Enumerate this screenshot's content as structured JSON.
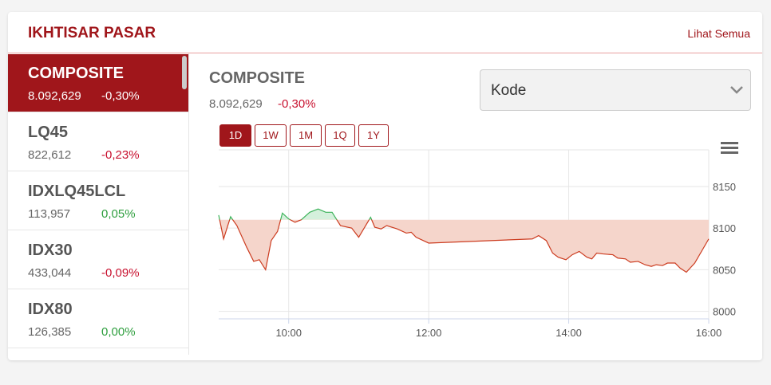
{
  "header": {
    "title": "IKHTISAR PASAR",
    "link": "Lihat Semua"
  },
  "list": [
    {
      "name": "COMPOSITE",
      "value": "8.092,629",
      "change": "-0,30%",
      "color": "#c8102e",
      "selected": true
    },
    {
      "name": "LQ45",
      "value": "822,612",
      "change": "-0,23%",
      "color": "#c8102e"
    },
    {
      "name": "IDXLQ45LCL",
      "value": "113,957",
      "change": "0,05%",
      "color": "#2e9e3e"
    },
    {
      "name": "IDX30",
      "value": "433,044",
      "change": "-0,09%",
      "color": "#c8102e"
    },
    {
      "name": "IDX80",
      "value": "126,385",
      "change": "0,00%",
      "color": "#2e9e3e"
    }
  ],
  "detail": {
    "name": "COMPOSITE",
    "value": "8.092,629",
    "change": "-0,30%",
    "dropdown": "Kode",
    "ranges": [
      "1D",
      "1W",
      "1M",
      "1Q",
      "1Y"
    ],
    "active_range": 0
  },
  "chart_data": {
    "type": "line",
    "x": [
      9.0,
      9.07,
      9.17,
      9.26,
      9.4,
      9.5,
      9.58,
      9.67,
      9.75,
      9.84,
      9.91,
      10.0,
      10.09,
      10.18,
      10.3,
      10.42,
      10.53,
      10.62,
      10.74,
      10.9,
      11.0,
      11.17,
      11.23,
      11.32,
      11.4,
      11.55,
      11.68,
      11.75,
      11.82,
      12.0,
      13.48,
      13.57,
      13.68,
      13.77,
      13.85,
      13.96,
      14.05,
      14.15,
      14.26,
      14.33,
      14.4,
      14.49,
      14.63,
      14.7,
      14.81,
      14.88,
      14.99,
      15.09,
      15.18,
      15.25,
      15.34,
      15.41,
      15.52,
      15.59,
      15.68,
      15.8,
      16.0
    ],
    "values": [
      8115.6,
      8087,
      8113.7,
      8103,
      8077,
      8060,
      8062,
      8050,
      8085,
      8096,
      8118,
      8111,
      8107,
      8110,
      8119,
      8123,
      8119,
      8119,
      8103,
      8100,
      8089,
      8113,
      8101,
      8099,
      8103,
      8099,
      8094,
      8095,
      8089,
      8082,
      8087,
      8091,
      8085,
      8070,
      8065,
      8062,
      8068,
      8072,
      8065,
      8063,
      8070,
      8069,
      8068,
      8064,
      8063,
      8059,
      8060,
      8056,
      8054,
      8056,
      8055,
      8058,
      8058,
      8052,
      8047,
      8058,
      8087
    ],
    "baseline": 8110,
    "color_up": "#3cb35a",
    "color_down": "#cc3b1f",
    "fill_up": "#d5f0dc",
    "fill_down": "#f5d5cb",
    "xlim": [
      9,
      16
    ],
    "xticks": [
      {
        "value": 10,
        "label": "10:00"
      },
      {
        "value": 12,
        "label": "12:00"
      },
      {
        "value": 14,
        "label": "14:00"
      },
      {
        "value": 16,
        "label": "16:00"
      }
    ],
    "ylim": [
      7991,
      8194
    ],
    "yticks": [
      8000,
      8050,
      8100,
      8150
    ],
    "grid": true
  }
}
